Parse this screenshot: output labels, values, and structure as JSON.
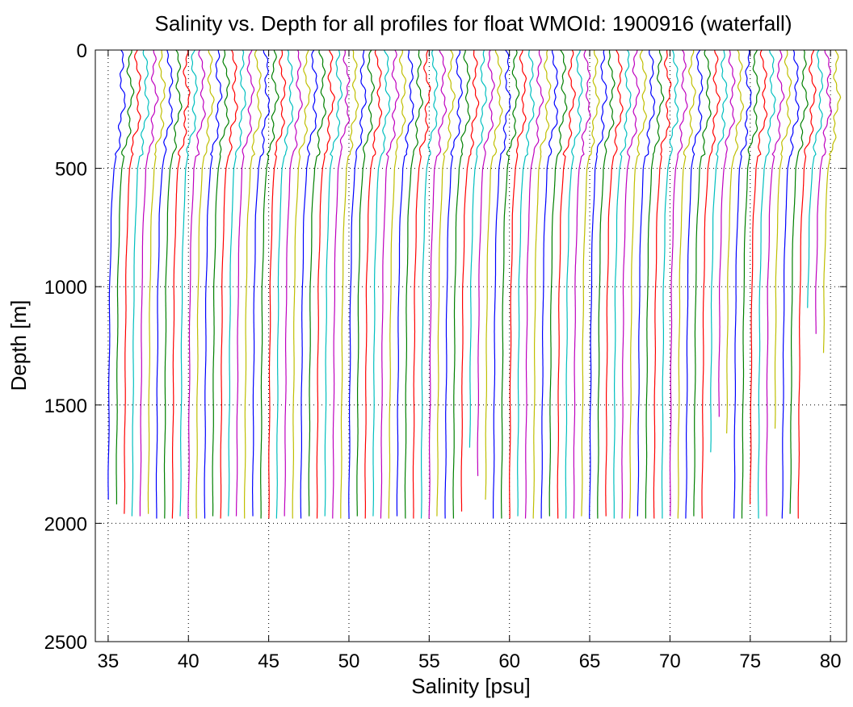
{
  "chart_data": {
    "type": "line",
    "title": "Salinity vs. Depth for all profiles for float WMOId: 1900916 (waterfall)",
    "xlabel": "Salinity [psu]",
    "ylabel": "Depth [m]",
    "xlim": [
      34.2,
      81
    ],
    "ylim": [
      0,
      2500
    ],
    "y_reversed": true,
    "grid": "dotted",
    "xticks": [
      35,
      40,
      45,
      50,
      55,
      60,
      65,
      70,
      75,
      80
    ],
    "xtick_labels": [
      "35",
      "40",
      "45",
      "50",
      "55",
      "60",
      "65",
      "70",
      "75",
      "80"
    ],
    "yticks": [
      0,
      500,
      1000,
      1500,
      2000,
      2500
    ],
    "ytick_labels": [
      "0",
      "500",
      "1000",
      "1500",
      "2000",
      "2500"
    ],
    "series_colors": [
      "#0000ff",
      "#008000",
      "#ff0000",
      "#00bfbf",
      "#bf00bf",
      "#bfbf00"
    ],
    "profile_count": 90,
    "waterfall_offset_per_profile": 0.5,
    "profile_shape": {
      "depth": [
        0,
        100,
        200,
        300,
        400,
        500,
        700,
        1000,
        1500,
        2000
      ],
      "salinity_anomaly": [
        0.0,
        0.05,
        0.15,
        0.05,
        -0.2,
        -0.45,
        -0.6,
        -0.7,
        -0.75,
        -0.8
      ]
    },
    "profile_bottom_depths": [
      1900,
      1920,
      1960,
      1975,
      1975,
      1960,
      1980,
      1980,
      1980,
      1975,
      1980,
      1980,
      1980,
      1970,
      1980,
      1975,
      1970,
      1980,
      1975,
      1980,
      1980,
      1980,
      1975,
      1980,
      1980,
      1970,
      1980,
      1975,
      1980,
      1980,
      1980,
      1975,
      1980,
      1970,
      1980,
      1980,
      1975,
      1980,
      1980,
      1980,
      1980,
      1975,
      1980,
      1980,
      1950,
      1680,
      1800,
      1900,
      1980,
      1980,
      1980,
      1975,
      1980,
      1980,
      1980,
      1975,
      1980,
      1980,
      1980,
      1970,
      1980,
      1980,
      1975,
      1980,
      1980,
      1980,
      1975,
      1980,
      1980,
      1980,
      1970,
      1980,
      1980,
      1975,
      1980,
      1700,
      1550,
      1620,
      1980,
      1980,
      1920,
      1980,
      1975,
      1600,
      1980,
      1960,
      1980,
      1090,
      1200,
      1280
    ]
  }
}
